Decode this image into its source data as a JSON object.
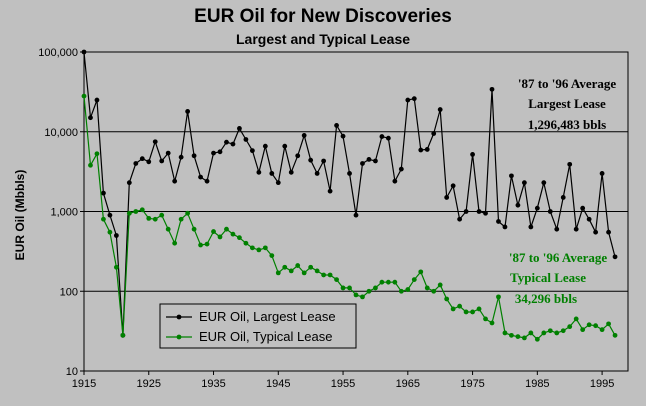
{
  "chart_data": {
    "type": "line",
    "title": "EUR Oil for New Discoveries",
    "subtitle": "Largest and Typical Lease",
    "xlabel": "",
    "ylabel": "EUR Oil (Mbbls)",
    "yscale": "log",
    "xlim": [
      1915,
      1999
    ],
    "ylim": [
      10,
      100000
    ],
    "x_tick_labels": [
      "1915",
      "1925",
      "1935",
      "1945",
      "1955",
      "1965",
      "1975",
      "1985",
      "1995"
    ],
    "y_tick_labels": [
      "10",
      "100",
      "1,000",
      "10,000",
      "100,000"
    ],
    "grid": "horizontal major lines",
    "legend_position": "bottom-left",
    "x": [
      1915,
      1916,
      1917,
      1918,
      1919,
      1920,
      1921,
      1922,
      1923,
      1924,
      1925,
      1926,
      1927,
      1928,
      1929,
      1930,
      1931,
      1932,
      1933,
      1934,
      1935,
      1936,
      1937,
      1938,
      1939,
      1940,
      1941,
      1942,
      1943,
      1944,
      1945,
      1946,
      1947,
      1948,
      1949,
      1950,
      1951,
      1952,
      1953,
      1954,
      1955,
      1956,
      1957,
      1958,
      1959,
      1960,
      1961,
      1962,
      1963,
      1964,
      1965,
      1966,
      1967,
      1968,
      1969,
      1970,
      1971,
      1972,
      1973,
      1974,
      1975,
      1976,
      1977,
      1978,
      1979,
      1980,
      1981,
      1982,
      1983,
      1984,
      1985,
      1986,
      1987,
      1988,
      1989,
      1990,
      1991,
      1992,
      1993,
      1994,
      1995,
      1996,
      1997
    ],
    "series": [
      {
        "name": "EUR Oil, Largest Lease",
        "color": "#000000",
        "values": [
          100000,
          15000,
          25000,
          1700,
          900,
          500,
          28,
          2300,
          4000,
          4600,
          4200,
          7500,
          4300,
          5400,
          2400,
          4800,
          18000,
          5000,
          2700,
          2400,
          5400,
          5600,
          7400,
          7000,
          11000,
          8000,
          5800,
          3100,
          6600,
          3000,
          2300,
          6600,
          3100,
          5000,
          9000,
          4400,
          3000,
          4300,
          1800,
          12000,
          8800,
          3000,
          900,
          4000,
          4500,
          4300,
          8700,
          8300,
          2400,
          3400,
          25000,
          26000,
          5900,
          6000,
          9500,
          19000,
          1500,
          2100,
          800,
          1000,
          5200,
          1000,
          950,
          34000,
          750,
          640,
          2800,
          1200,
          2300,
          640,
          1100,
          2300,
          1000,
          600,
          1500,
          3900,
          600,
          1100,
          800,
          550,
          3000,
          550,
          270
        ]
      },
      {
        "name": "EUR Oil, Typical Lease",
        "color": "#008000",
        "values": [
          28000,
          3800,
          5300,
          800,
          550,
          200,
          28,
          950,
          1000,
          1050,
          820,
          800,
          900,
          600,
          400,
          800,
          950,
          600,
          380,
          390,
          560,
          480,
          600,
          520,
          470,
          400,
          350,
          330,
          350,
          280,
          170,
          200,
          180,
          210,
          170,
          200,
          180,
          160,
          160,
          140,
          110,
          110,
          90,
          85,
          100,
          110,
          130,
          130,
          130,
          100,
          105,
          140,
          175,
          110,
          100,
          120,
          80,
          60,
          65,
          55,
          55,
          60,
          45,
          40,
          85,
          30,
          28,
          27,
          26,
          30,
          25,
          30,
          32,
          30,
          32,
          36,
          45,
          33,
          38,
          37,
          33,
          39,
          28
        ]
      }
    ],
    "annotations": [
      {
        "lines": [
          "'87 to '96 Average",
          "Largest Lease",
          "1,296,483 bbls"
        ],
        "color": "#000000"
      },
      {
        "lines": [
          "'87 to '96 Average",
          "Typical Lease",
          "34,296 bbls"
        ],
        "color": "#008000"
      }
    ]
  }
}
